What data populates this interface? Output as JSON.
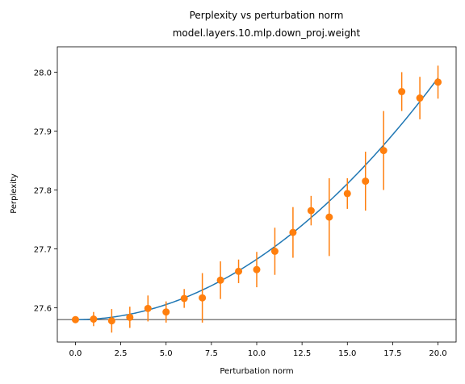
{
  "chart_data": {
    "type": "scatter",
    "title": "Perplexity vs perturbation norm",
    "subtitle": "model.layers.10.mlp.down_proj.weight",
    "xlabel": "Perturbation norm",
    "ylabel": "Perplexity",
    "xlim": [
      -1.0,
      21.0
    ],
    "ylim": [
      27.542,
      28.043
    ],
    "xticks": [
      0.0,
      2.5,
      5.0,
      7.5,
      10.0,
      12.5,
      15.0,
      17.5,
      20.0
    ],
    "xtick_labels": [
      "0.0",
      "2.5",
      "5.0",
      "7.5",
      "10.0",
      "12.5",
      "15.0",
      "17.5",
      "20.0"
    ],
    "yticks": [
      27.6,
      27.7,
      27.8,
      27.9,
      28.0
    ],
    "ytick_labels": [
      "27.6",
      "27.7",
      "27.8",
      "27.9",
      "28.0"
    ],
    "baseline": 27.58,
    "fit_curve": {
      "name": "fit",
      "color": "#1f77b4",
      "x_range": [
        0,
        20
      ],
      "intercept": 27.58,
      "coef_quadratic": 0.001025
    },
    "points": {
      "name": "measured",
      "color": "#ff7f0e",
      "x": [
        0,
        1,
        2,
        3,
        4,
        5,
        6,
        7,
        8,
        9,
        10,
        11,
        12,
        13,
        14,
        15,
        16,
        17,
        18,
        19,
        20
      ],
      "y": [
        27.58,
        27.581,
        27.578,
        27.584,
        27.599,
        27.593,
        27.616,
        27.617,
        27.647,
        27.662,
        27.665,
        27.696,
        27.728,
        27.765,
        27.754,
        27.794,
        27.815,
        27.867,
        27.967,
        27.956,
        27.983
      ],
      "yerr": [
        0.0,
        0.012,
        0.02,
        0.018,
        0.022,
        0.018,
        0.016,
        0.042,
        0.032,
        0.02,
        0.03,
        0.04,
        0.043,
        0.025,
        0.066,
        0.026,
        0.05,
        0.067,
        0.033,
        0.036,
        0.028
      ]
    },
    "baseline_color": "#808080",
    "grid": false,
    "legend": "none"
  }
}
